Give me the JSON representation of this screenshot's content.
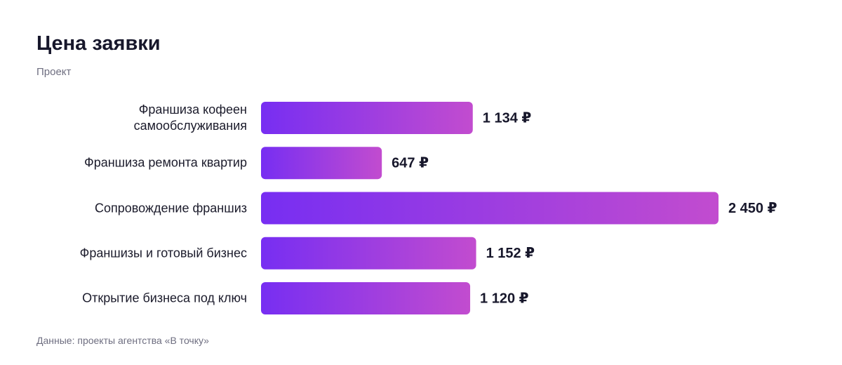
{
  "chart_data": {
    "type": "bar",
    "orientation": "horizontal",
    "title": "Цена заявки",
    "subtitle": "Проект",
    "categories": [
      "Франшиза кофеен самообслуживания",
      "Франшиза ремонта квартир",
      "Сопровождение франшиз",
      "Франшизы и готовый бизнес",
      "Открытие бизнеса под ключ"
    ],
    "values": [
      1134,
      647,
      2450,
      1152,
      1120
    ],
    "value_labels": [
      "1 134 ₽",
      "647 ₽",
      "2 450 ₽",
      "1 152 ₽",
      "1 120 ₽"
    ],
    "colors": [
      "#772ef2",
      "#c24ccf"
    ],
    "source": "Данные: проекты агентства «В точку»"
  }
}
